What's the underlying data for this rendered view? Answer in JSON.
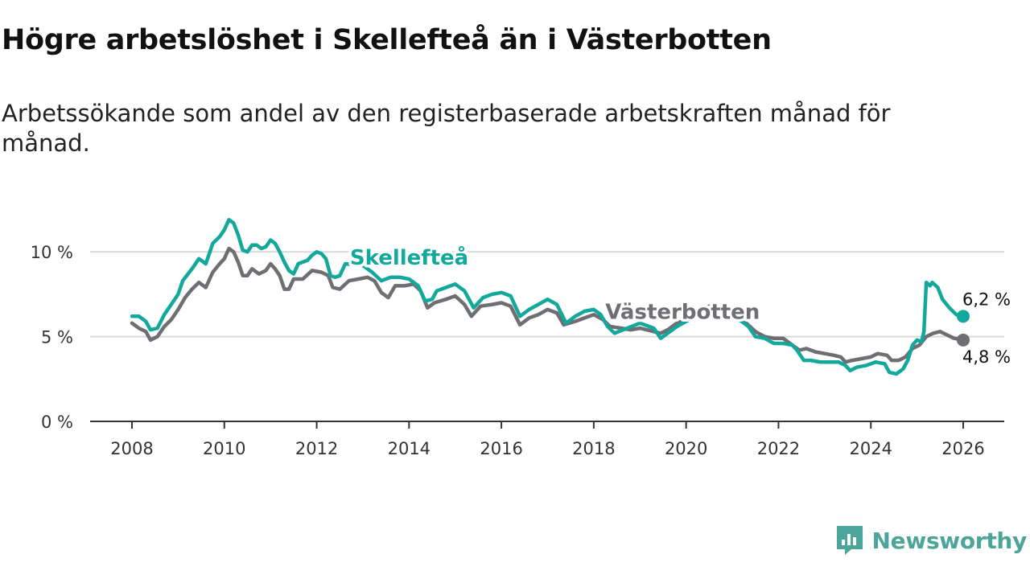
{
  "header": {
    "title": "Högre arbetslöshet i Skellefteå än i Västerbotten",
    "subtitle": "Arbetssökande som andel av den registerbaserade arbetskraften månad för månad."
  },
  "brand": {
    "name": "Newsworthy",
    "color": "#4ba59a"
  },
  "chart_data": {
    "type": "line",
    "title": "Högre arbetslöshet i Skellefteå än i Västerbotten",
    "subtitle": "Arbetssökande som andel av den registerbaserade arbetskraften månad för månad.",
    "xlabel": "",
    "ylabel": "",
    "xlim": [
      2007.55,
      2027.0
    ],
    "ylim": [
      0,
      13
    ],
    "grid": true,
    "y_ticks": [
      {
        "value": 0,
        "label": "0 %"
      },
      {
        "value": 5,
        "label": "5 %"
      },
      {
        "value": 10,
        "label": "10 %"
      }
    ],
    "x_ticks": [
      {
        "value": 2008,
        "label": "2008"
      },
      {
        "value": 2010,
        "label": "2010"
      },
      {
        "value": 2012,
        "label": "2012"
      },
      {
        "value": 2014,
        "label": "2014"
      },
      {
        "value": 2016,
        "label": "2016"
      },
      {
        "value": 2018,
        "label": "2018"
      },
      {
        "value": 2020,
        "label": "2020"
      },
      {
        "value": 2022,
        "label": "2022"
      },
      {
        "value": 2024,
        "label": "2024"
      },
      {
        "value": 2026,
        "label": "2026"
      }
    ],
    "series": [
      {
        "name": "Skellefteå",
        "color": "#13a89c",
        "end_label": "6,2 %",
        "points": [
          [
            2008.0,
            6.2
          ],
          [
            2008.15,
            6.2
          ],
          [
            2008.3,
            5.9
          ],
          [
            2008.4,
            5.4
          ],
          [
            2008.55,
            5.5
          ],
          [
            2008.7,
            6.3
          ],
          [
            2008.85,
            6.9
          ],
          [
            2009.0,
            7.5
          ],
          [
            2009.1,
            8.3
          ],
          [
            2009.3,
            9.0
          ],
          [
            2009.45,
            9.6
          ],
          [
            2009.6,
            9.3
          ],
          [
            2009.75,
            10.5
          ],
          [
            2009.9,
            10.9
          ],
          [
            2010.0,
            11.3
          ],
          [
            2010.1,
            11.9
          ],
          [
            2010.2,
            11.7
          ],
          [
            2010.3,
            11.0
          ],
          [
            2010.4,
            10.1
          ],
          [
            2010.5,
            10.0
          ],
          [
            2010.6,
            10.4
          ],
          [
            2010.7,
            10.4
          ],
          [
            2010.8,
            10.2
          ],
          [
            2010.9,
            10.3
          ],
          [
            2011.0,
            10.7
          ],
          [
            2011.1,
            10.5
          ],
          [
            2011.2,
            10.0
          ],
          [
            2011.3,
            9.4
          ],
          [
            2011.4,
            8.9
          ],
          [
            2011.5,
            8.7
          ],
          [
            2011.6,
            9.3
          ],
          [
            2011.7,
            9.4
          ],
          [
            2011.8,
            9.5
          ],
          [
            2011.9,
            9.8
          ],
          [
            2012.0,
            10.0
          ],
          [
            2012.1,
            9.9
          ],
          [
            2012.2,
            9.6
          ],
          [
            2012.3,
            8.6
          ],
          [
            2012.4,
            8.5
          ],
          [
            2012.5,
            8.6
          ],
          [
            2012.62,
            9.3
          ],
          [
            2013.0,
            9.2
          ],
          [
            2013.2,
            8.8
          ],
          [
            2013.4,
            8.3
          ],
          [
            2013.6,
            8.5
          ],
          [
            2013.8,
            8.5
          ],
          [
            2014.0,
            8.4
          ],
          [
            2014.2,
            8.0
          ],
          [
            2014.35,
            7.1
          ],
          [
            2014.5,
            7.2
          ],
          [
            2014.6,
            7.7
          ],
          [
            2014.8,
            7.9
          ],
          [
            2015.0,
            8.1
          ],
          [
            2015.2,
            7.7
          ],
          [
            2015.4,
            6.7
          ],
          [
            2015.6,
            7.3
          ],
          [
            2015.8,
            7.5
          ],
          [
            2016.0,
            7.6
          ],
          [
            2016.2,
            7.4
          ],
          [
            2016.4,
            6.2
          ],
          [
            2016.6,
            6.6
          ],
          [
            2016.8,
            6.9
          ],
          [
            2017.0,
            7.2
          ],
          [
            2017.2,
            6.9
          ],
          [
            2017.4,
            5.8
          ],
          [
            2017.6,
            6.2
          ],
          [
            2017.8,
            6.5
          ],
          [
            2018.0,
            6.6
          ],
          [
            2018.15,
            6.3
          ],
          [
            2018.3,
            5.6
          ],
          [
            2018.45,
            5.2
          ],
          [
            2019.0,
            5.8
          ],
          [
            2019.3,
            5.5
          ],
          [
            2019.45,
            4.9
          ],
          [
            2019.6,
            5.2
          ],
          [
            2019.8,
            5.6
          ],
          [
            2020.0,
            5.9
          ],
          [
            2020.3,
            6.3
          ],
          [
            2020.55,
            6.4
          ],
          [
            2020.8,
            6.2
          ],
          [
            2021.0,
            6.2
          ],
          [
            2021.2,
            5.9
          ],
          [
            2021.35,
            5.6
          ],
          [
            2021.5,
            5.0
          ],
          [
            2021.7,
            4.9
          ],
          [
            2021.9,
            4.6
          ],
          [
            2022.1,
            4.6
          ],
          [
            2022.3,
            4.5
          ],
          [
            2022.4,
            4.2
          ],
          [
            2022.55,
            3.6
          ],
          [
            2022.7,
            3.6
          ],
          [
            2022.9,
            3.5
          ],
          [
            2023.1,
            3.5
          ],
          [
            2023.3,
            3.5
          ],
          [
            2023.45,
            3.3
          ],
          [
            2023.55,
            3.0
          ],
          [
            2023.7,
            3.2
          ],
          [
            2023.9,
            3.3
          ],
          [
            2024.1,
            3.5
          ],
          [
            2024.3,
            3.4
          ],
          [
            2024.4,
            2.9
          ],
          [
            2024.55,
            2.8
          ],
          [
            2024.7,
            3.1
          ],
          [
            2024.8,
            3.6
          ],
          [
            2024.9,
            4.5
          ],
          [
            2025.0,
            4.8
          ],
          [
            2025.1,
            4.7
          ],
          [
            2025.15,
            5.3
          ],
          [
            2025.2,
            8.2
          ],
          [
            2025.28,
            8.0
          ],
          [
            2025.33,
            8.2
          ],
          [
            2025.45,
            7.9
          ],
          [
            2025.55,
            7.2
          ],
          [
            2025.7,
            6.7
          ],
          [
            2025.85,
            6.3
          ],
          [
            2026.0,
            6.2
          ]
        ]
      },
      {
        "name": "Västerbotten",
        "color": "#6e6e73",
        "end_label": "4,8 %",
        "points": [
          [
            2008.0,
            5.8
          ],
          [
            2008.15,
            5.5
          ],
          [
            2008.3,
            5.3
          ],
          [
            2008.4,
            4.8
          ],
          [
            2008.55,
            5.0
          ],
          [
            2008.7,
            5.6
          ],
          [
            2008.85,
            6.0
          ],
          [
            2009.0,
            6.6
          ],
          [
            2009.15,
            7.3
          ],
          [
            2009.3,
            7.8
          ],
          [
            2009.45,
            8.2
          ],
          [
            2009.6,
            7.9
          ],
          [
            2009.75,
            8.8
          ],
          [
            2009.9,
            9.3
          ],
          [
            2010.0,
            9.6
          ],
          [
            2010.1,
            10.2
          ],
          [
            2010.2,
            10.0
          ],
          [
            2010.3,
            9.4
          ],
          [
            2010.4,
            8.6
          ],
          [
            2010.5,
            8.6
          ],
          [
            2010.6,
            9.0
          ],
          [
            2010.75,
            8.7
          ],
          [
            2010.9,
            8.9
          ],
          [
            2011.0,
            9.3
          ],
          [
            2011.1,
            9.0
          ],
          [
            2011.2,
            8.6
          ],
          [
            2011.3,
            7.8
          ],
          [
            2011.4,
            7.8
          ],
          [
            2011.5,
            8.4
          ],
          [
            2011.7,
            8.4
          ],
          [
            2011.9,
            8.9
          ],
          [
            2012.1,
            8.8
          ],
          [
            2012.25,
            8.6
          ],
          [
            2012.35,
            7.9
          ],
          [
            2012.5,
            7.8
          ],
          [
            2012.7,
            8.3
          ],
          [
            2012.9,
            8.4
          ],
          [
            2013.1,
            8.5
          ],
          [
            2013.25,
            8.3
          ],
          [
            2013.4,
            7.6
          ],
          [
            2013.55,
            7.3
          ],
          [
            2013.7,
            8.0
          ],
          [
            2013.9,
            8.0
          ],
          [
            2014.1,
            8.1
          ],
          [
            2014.25,
            7.7
          ],
          [
            2014.4,
            6.7
          ],
          [
            2014.55,
            7.0
          ],
          [
            2014.8,
            7.2
          ],
          [
            2015.0,
            7.4
          ],
          [
            2015.2,
            6.9
          ],
          [
            2015.35,
            6.2
          ],
          [
            2015.55,
            6.8
          ],
          [
            2015.8,
            6.9
          ],
          [
            2016.0,
            7.0
          ],
          [
            2016.2,
            6.8
          ],
          [
            2016.4,
            5.7
          ],
          [
            2016.6,
            6.1
          ],
          [
            2016.8,
            6.3
          ],
          [
            2017.0,
            6.6
          ],
          [
            2017.2,
            6.4
          ],
          [
            2017.35,
            5.7
          ],
          [
            2017.6,
            5.9
          ],
          [
            2017.8,
            6.1
          ],
          [
            2018.0,
            6.3
          ],
          [
            2018.2,
            6.0
          ],
          [
            2018.35,
            5.6
          ],
          [
            2018.6,
            5.5
          ],
          [
            2018.8,
            5.4
          ],
          [
            2019.0,
            5.5
          ],
          [
            2019.3,
            5.3
          ],
          [
            2019.45,
            5.2
          ],
          [
            2019.6,
            5.4
          ],
          [
            2019.8,
            5.8
          ],
          [
            2020.0,
            6.0
          ],
          [
            2020.25,
            6.5
          ],
          [
            2020.5,
            6.8
          ],
          [
            2020.7,
            6.6
          ],
          [
            2020.9,
            6.6
          ],
          [
            2021.1,
            6.4
          ],
          [
            2021.3,
            5.8
          ],
          [
            2021.5,
            5.3
          ],
          [
            2021.7,
            5.0
          ],
          [
            2021.9,
            4.9
          ],
          [
            2022.1,
            4.9
          ],
          [
            2022.3,
            4.5
          ],
          [
            2022.45,
            4.2
          ],
          [
            2022.6,
            4.3
          ],
          [
            2022.8,
            4.1
          ],
          [
            2023.0,
            4.0
          ],
          [
            2023.2,
            3.9
          ],
          [
            2023.35,
            3.8
          ],
          [
            2023.45,
            3.5
          ],
          [
            2023.6,
            3.6
          ],
          [
            2023.8,
            3.7
          ],
          [
            2024.0,
            3.8
          ],
          [
            2024.15,
            4.0
          ],
          [
            2024.35,
            3.9
          ],
          [
            2024.45,
            3.6
          ],
          [
            2024.6,
            3.6
          ],
          [
            2024.75,
            3.8
          ],
          [
            2024.9,
            4.3
          ],
          [
            2025.05,
            4.5
          ],
          [
            2025.2,
            5.0
          ],
          [
            2025.35,
            5.2
          ],
          [
            2025.5,
            5.3
          ],
          [
            2025.65,
            5.1
          ],
          [
            2025.8,
            4.9
          ],
          [
            2026.0,
            4.8
          ]
        ]
      }
    ],
    "annotations": [
      {
        "text": "Skellefteå",
        "series": "Skellefteå",
        "x": 2012.72,
        "y": 9.25
      },
      {
        "text": "Västerbotten",
        "series": "Västerbotten",
        "x": 2018.25,
        "y": 6.05
      }
    ]
  }
}
